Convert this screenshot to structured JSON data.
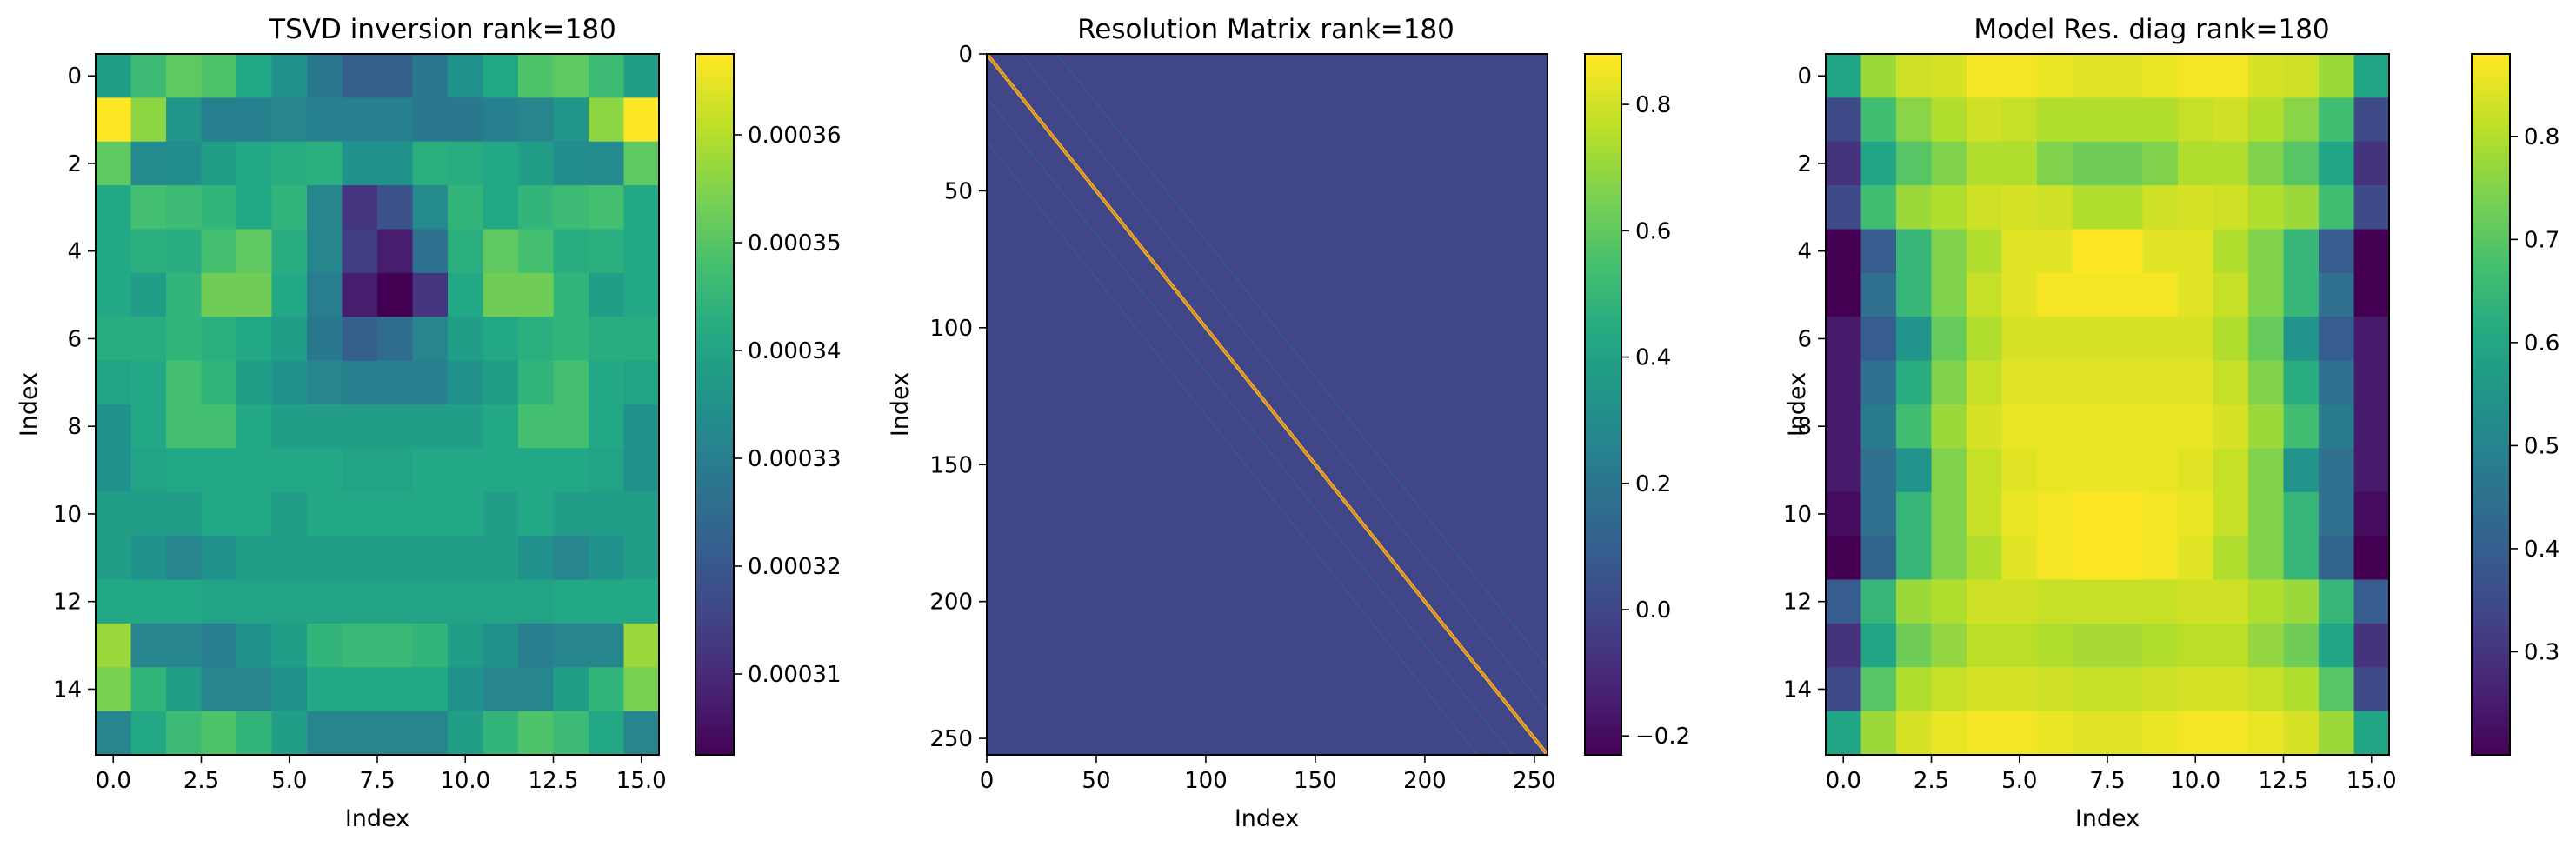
{
  "figure": {
    "background": "#ffffff",
    "colormap": "viridis"
  },
  "chart_data": [
    {
      "type": "heatmap",
      "title": "TSVD inversion rank=180",
      "xlabel": "Index",
      "ylabel": "Index",
      "grid": false,
      "rows": 16,
      "cols": 16,
      "x_ticks": [
        "0.0",
        "2.5",
        "5.0",
        "7.5",
        "10.0",
        "12.5",
        "15.0"
      ],
      "x_tick_values": [
        0,
        2.5,
        5,
        7.5,
        10,
        12.5,
        15
      ],
      "y_ticks": [
        "0",
        "2",
        "4",
        "6",
        "8",
        "10",
        "12",
        "14"
      ],
      "y_tick_values": [
        0,
        2,
        4,
        6,
        8,
        10,
        12,
        14
      ],
      "colorbar": {
        "min": 0.0003025,
        "max": 0.0003675,
        "ticks": [
          "0.00031",
          "0.00032",
          "0.00033",
          "0.00034",
          "0.00035",
          "0.00036"
        ],
        "tick_values": [
          0.00031,
          0.00032,
          0.00033,
          0.00034,
          0.00035,
          0.00036
        ]
      },
      "values_norm": [
        [
          0.55,
          0.68,
          0.75,
          0.72,
          0.6,
          0.5,
          0.4,
          0.3,
          0.3,
          0.4,
          0.5,
          0.6,
          0.72,
          0.75,
          0.68,
          0.55
        ],
        [
          1.0,
          0.83,
          0.52,
          0.43,
          0.43,
          0.45,
          0.43,
          0.43,
          0.43,
          0.4,
          0.4,
          0.43,
          0.45,
          0.52,
          0.83,
          1.0
        ],
        [
          0.75,
          0.47,
          0.48,
          0.55,
          0.6,
          0.62,
          0.63,
          0.5,
          0.5,
          0.63,
          0.62,
          0.6,
          0.55,
          0.48,
          0.47,
          0.75
        ],
        [
          0.6,
          0.7,
          0.68,
          0.65,
          0.6,
          0.65,
          0.45,
          0.15,
          0.25,
          0.47,
          0.65,
          0.6,
          0.65,
          0.68,
          0.7,
          0.6
        ],
        [
          0.6,
          0.63,
          0.62,
          0.7,
          0.75,
          0.62,
          0.45,
          0.18,
          0.08,
          0.37,
          0.63,
          0.75,
          0.7,
          0.62,
          0.63,
          0.6
        ],
        [
          0.6,
          0.55,
          0.65,
          0.78,
          0.78,
          0.6,
          0.42,
          0.08,
          0.0,
          0.15,
          0.6,
          0.78,
          0.78,
          0.65,
          0.55,
          0.6
        ],
        [
          0.62,
          0.62,
          0.65,
          0.63,
          0.6,
          0.55,
          0.4,
          0.3,
          0.35,
          0.45,
          0.55,
          0.6,
          0.63,
          0.65,
          0.62,
          0.62
        ],
        [
          0.58,
          0.6,
          0.7,
          0.65,
          0.55,
          0.5,
          0.45,
          0.43,
          0.43,
          0.43,
          0.5,
          0.55,
          0.65,
          0.7,
          0.6,
          0.58
        ],
        [
          0.5,
          0.6,
          0.7,
          0.7,
          0.6,
          0.55,
          0.55,
          0.55,
          0.55,
          0.55,
          0.55,
          0.6,
          0.7,
          0.7,
          0.6,
          0.5
        ],
        [
          0.5,
          0.58,
          0.6,
          0.6,
          0.6,
          0.6,
          0.6,
          0.58,
          0.58,
          0.6,
          0.6,
          0.6,
          0.6,
          0.6,
          0.58,
          0.5
        ],
        [
          0.55,
          0.55,
          0.55,
          0.6,
          0.6,
          0.55,
          0.6,
          0.6,
          0.6,
          0.6,
          0.6,
          0.55,
          0.6,
          0.55,
          0.55,
          0.55
        ],
        [
          0.55,
          0.5,
          0.45,
          0.5,
          0.55,
          0.55,
          0.55,
          0.55,
          0.55,
          0.55,
          0.55,
          0.55,
          0.5,
          0.45,
          0.5,
          0.55
        ],
        [
          0.6,
          0.6,
          0.6,
          0.58,
          0.58,
          0.58,
          0.58,
          0.58,
          0.58,
          0.58,
          0.58,
          0.58,
          0.58,
          0.6,
          0.6,
          0.6
        ],
        [
          0.85,
          0.45,
          0.45,
          0.42,
          0.5,
          0.55,
          0.65,
          0.67,
          0.67,
          0.65,
          0.55,
          0.5,
          0.42,
          0.45,
          0.45,
          0.85
        ],
        [
          0.8,
          0.65,
          0.55,
          0.45,
          0.45,
          0.5,
          0.6,
          0.6,
          0.6,
          0.6,
          0.5,
          0.45,
          0.45,
          0.55,
          0.65,
          0.8
        ],
        [
          0.45,
          0.6,
          0.68,
          0.72,
          0.65,
          0.55,
          0.45,
          0.45,
          0.45,
          0.45,
          0.55,
          0.65,
          0.72,
          0.68,
          0.6,
          0.45
        ]
      ]
    },
    {
      "type": "heatmap",
      "title": "Resolution Matrix rank=180",
      "xlabel": "Index",
      "ylabel": "Index",
      "grid": false,
      "rows": 256,
      "cols": 256,
      "x_ticks": [
        "0",
        "50",
        "100",
        "150",
        "200",
        "250"
      ],
      "x_tick_values": [
        0,
        50,
        100,
        150,
        200,
        250
      ],
      "y_ticks": [
        "0",
        "50",
        "100",
        "150",
        "200",
        "250"
      ],
      "y_tick_values": [
        0,
        50,
        100,
        150,
        200,
        250
      ],
      "diagonal_value": 0.87,
      "background_value": 0.0,
      "colorbar": {
        "min": -0.23,
        "max": 0.88,
        "ticks": [
          "−0.2",
          "0.0",
          "0.2",
          "0.4",
          "0.6",
          "0.8"
        ],
        "tick_values": [
          -0.2,
          0.0,
          0.2,
          0.4,
          0.6,
          0.8
        ]
      }
    },
    {
      "type": "heatmap",
      "title": "Model Res. diag rank=180",
      "xlabel": "Index",
      "ylabel": "Index",
      "grid": false,
      "rows": 16,
      "cols": 16,
      "x_ticks": [
        "0.0",
        "2.5",
        "5.0",
        "7.5",
        "10.0",
        "12.5",
        "15.0"
      ],
      "x_tick_values": [
        0,
        2.5,
        5,
        7.5,
        10,
        12.5,
        15
      ],
      "y_ticks": [
        "0",
        "2",
        "4",
        "6",
        "8",
        "10",
        "12",
        "14"
      ],
      "y_tick_values": [
        0,
        2,
        4,
        6,
        8,
        10,
        12,
        14
      ],
      "colorbar": {
        "min": 0.2,
        "max": 0.88,
        "ticks": [
          "0.3",
          "0.4",
          "0.5",
          "0.6",
          "0.7",
          "0.8"
        ],
        "tick_values": [
          0.3,
          0.4,
          0.5,
          0.6,
          0.7,
          0.8
        ]
      },
      "values": [
        [
          0.6,
          0.78,
          0.83,
          0.84,
          0.87,
          0.87,
          0.86,
          0.85,
          0.85,
          0.86,
          0.87,
          0.87,
          0.84,
          0.83,
          0.78,
          0.6
        ],
        [
          0.35,
          0.67,
          0.76,
          0.8,
          0.83,
          0.82,
          0.8,
          0.8,
          0.8,
          0.8,
          0.82,
          0.83,
          0.8,
          0.76,
          0.67,
          0.35
        ],
        [
          0.3,
          0.6,
          0.7,
          0.75,
          0.8,
          0.8,
          0.75,
          0.73,
          0.73,
          0.75,
          0.8,
          0.8,
          0.75,
          0.7,
          0.6,
          0.3
        ],
        [
          0.35,
          0.67,
          0.78,
          0.8,
          0.83,
          0.84,
          0.83,
          0.8,
          0.8,
          0.83,
          0.84,
          0.83,
          0.8,
          0.78,
          0.67,
          0.35
        ],
        [
          0.2,
          0.4,
          0.65,
          0.75,
          0.8,
          0.85,
          0.85,
          0.88,
          0.88,
          0.85,
          0.85,
          0.8,
          0.75,
          0.65,
          0.4,
          0.2
        ],
        [
          0.2,
          0.45,
          0.65,
          0.75,
          0.82,
          0.85,
          0.87,
          0.87,
          0.87,
          0.87,
          0.85,
          0.82,
          0.75,
          0.65,
          0.45,
          0.2
        ],
        [
          0.25,
          0.4,
          0.55,
          0.72,
          0.8,
          0.84,
          0.84,
          0.84,
          0.84,
          0.84,
          0.84,
          0.8,
          0.72,
          0.55,
          0.4,
          0.25
        ],
        [
          0.25,
          0.45,
          0.62,
          0.75,
          0.82,
          0.85,
          0.85,
          0.85,
          0.85,
          0.85,
          0.85,
          0.82,
          0.75,
          0.62,
          0.45,
          0.25
        ],
        [
          0.25,
          0.48,
          0.67,
          0.78,
          0.84,
          0.86,
          0.86,
          0.86,
          0.86,
          0.86,
          0.86,
          0.84,
          0.78,
          0.67,
          0.48,
          0.25
        ],
        [
          0.25,
          0.45,
          0.55,
          0.75,
          0.82,
          0.85,
          0.86,
          0.86,
          0.86,
          0.86,
          0.85,
          0.82,
          0.75,
          0.55,
          0.45,
          0.25
        ],
        [
          0.22,
          0.45,
          0.65,
          0.75,
          0.82,
          0.86,
          0.87,
          0.88,
          0.88,
          0.87,
          0.86,
          0.82,
          0.75,
          0.65,
          0.45,
          0.22
        ],
        [
          0.2,
          0.42,
          0.65,
          0.75,
          0.8,
          0.85,
          0.87,
          0.88,
          0.88,
          0.87,
          0.85,
          0.8,
          0.75,
          0.65,
          0.42,
          0.2
        ],
        [
          0.4,
          0.65,
          0.78,
          0.8,
          0.83,
          0.83,
          0.82,
          0.82,
          0.82,
          0.82,
          0.83,
          0.83,
          0.8,
          0.78,
          0.65,
          0.4
        ],
        [
          0.3,
          0.6,
          0.73,
          0.77,
          0.81,
          0.81,
          0.8,
          0.79,
          0.79,
          0.8,
          0.81,
          0.81,
          0.77,
          0.73,
          0.6,
          0.3
        ],
        [
          0.35,
          0.7,
          0.8,
          0.82,
          0.84,
          0.84,
          0.83,
          0.82,
          0.82,
          0.83,
          0.84,
          0.84,
          0.82,
          0.8,
          0.7,
          0.35
        ],
        [
          0.6,
          0.78,
          0.84,
          0.86,
          0.87,
          0.87,
          0.86,
          0.85,
          0.85,
          0.86,
          0.87,
          0.87,
          0.86,
          0.84,
          0.78,
          0.6
        ]
      ]
    }
  ]
}
